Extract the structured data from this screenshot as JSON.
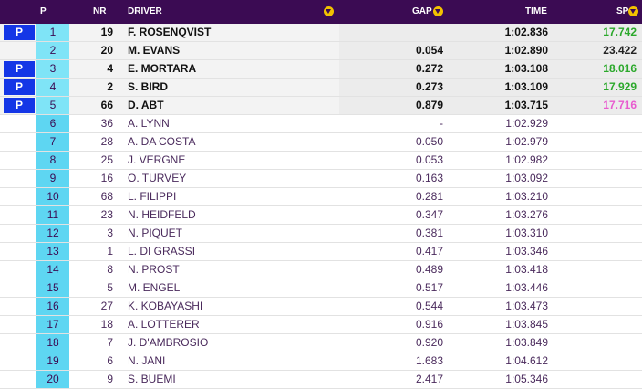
{
  "header": {
    "pos": "P",
    "nr": "NR",
    "driver": "DRIVER",
    "gap": "GAP",
    "time": "TIME",
    "sp": "SP"
  },
  "icons": {
    "sort": "chevron-down-circle-icon"
  },
  "colors": {
    "header_bg": "#3b0b53",
    "pole_badge": "#1436e6",
    "position_col": "#5ed6f2",
    "sector_green": "#2ba82b",
    "sector_pink": "#e85ccf",
    "sector_default": "#222222"
  },
  "rows": [
    {
      "badge": "P",
      "pos": "1",
      "nr": "19",
      "driver": "F. ROSENQVIST",
      "gap": "",
      "time": "1:02.836",
      "sp": "17.742",
      "sp_color": "green",
      "group": "top"
    },
    {
      "badge": "",
      "pos": "2",
      "nr": "20",
      "driver": "M. EVANS",
      "gap": "0.054",
      "time": "1:02.890",
      "sp": "23.422",
      "sp_color": "default",
      "group": "top"
    },
    {
      "badge": "P",
      "pos": "3",
      "nr": "4",
      "driver": "E. MORTARA",
      "gap": "0.272",
      "time": "1:03.108",
      "sp": "18.016",
      "sp_color": "green",
      "group": "top"
    },
    {
      "badge": "P",
      "pos": "4",
      "nr": "2",
      "driver": "S. BIRD",
      "gap": "0.273",
      "time": "1:03.109",
      "sp": "17.929",
      "sp_color": "green",
      "group": "top"
    },
    {
      "badge": "P",
      "pos": "5",
      "nr": "66",
      "driver": "D. ABT",
      "gap": "0.879",
      "time": "1:03.715",
      "sp": "17.716",
      "sp_color": "pink",
      "group": "top"
    },
    {
      "badge": "",
      "pos": "6",
      "nr": "36",
      "driver": "A. LYNN",
      "gap": "-",
      "time": "1:02.929",
      "sp": "",
      "sp_color": "default",
      "group": "rest"
    },
    {
      "badge": "",
      "pos": "7",
      "nr": "28",
      "driver": "A. DA COSTA",
      "gap": "0.050",
      "time": "1:02.979",
      "sp": "",
      "sp_color": "default",
      "group": "rest"
    },
    {
      "badge": "",
      "pos": "8",
      "nr": "25",
      "driver": "J. VERGNE",
      "gap": "0.053",
      "time": "1:02.982",
      "sp": "",
      "sp_color": "default",
      "group": "rest"
    },
    {
      "badge": "",
      "pos": "9",
      "nr": "16",
      "driver": "O. TURVEY",
      "gap": "0.163",
      "time": "1:03.092",
      "sp": "",
      "sp_color": "default",
      "group": "rest"
    },
    {
      "badge": "",
      "pos": "10",
      "nr": "68",
      "driver": "L. FILIPPI",
      "gap": "0.281",
      "time": "1:03.210",
      "sp": "",
      "sp_color": "default",
      "group": "rest"
    },
    {
      "badge": "",
      "pos": "11",
      "nr": "23",
      "driver": "N. HEIDFELD",
      "gap": "0.347",
      "time": "1:03.276",
      "sp": "",
      "sp_color": "default",
      "group": "rest"
    },
    {
      "badge": "",
      "pos": "12",
      "nr": "3",
      "driver": "N. PIQUET",
      "gap": "0.381",
      "time": "1:03.310",
      "sp": "",
      "sp_color": "default",
      "group": "rest"
    },
    {
      "badge": "",
      "pos": "13",
      "nr": "1",
      "driver": "L. DI GRASSI",
      "gap": "0.417",
      "time": "1:03.346",
      "sp": "",
      "sp_color": "default",
      "group": "rest"
    },
    {
      "badge": "",
      "pos": "14",
      "nr": "8",
      "driver": "N. PROST",
      "gap": "0.489",
      "time": "1:03.418",
      "sp": "",
      "sp_color": "default",
      "group": "rest"
    },
    {
      "badge": "",
      "pos": "15",
      "nr": "5",
      "driver": "M. ENGEL",
      "gap": "0.517",
      "time": "1:03.446",
      "sp": "",
      "sp_color": "default",
      "group": "rest"
    },
    {
      "badge": "",
      "pos": "16",
      "nr": "27",
      "driver": "K. KOBAYASHI",
      "gap": "0.544",
      "time": "1:03.473",
      "sp": "",
      "sp_color": "default",
      "group": "rest"
    },
    {
      "badge": "",
      "pos": "17",
      "nr": "18",
      "driver": "A. LOTTERER",
      "gap": "0.916",
      "time": "1:03.845",
      "sp": "",
      "sp_color": "default",
      "group": "rest"
    },
    {
      "badge": "",
      "pos": "18",
      "nr": "7",
      "driver": "J. D'AMBROSIO",
      "gap": "0.920",
      "time": "1:03.849",
      "sp": "",
      "sp_color": "default",
      "group": "rest"
    },
    {
      "badge": "",
      "pos": "19",
      "nr": "6",
      "driver": "N. JANI",
      "gap": "1.683",
      "time": "1:04.612",
      "sp": "",
      "sp_color": "default",
      "group": "rest"
    },
    {
      "badge": "",
      "pos": "20",
      "nr": "9",
      "driver": "S. BUEMI",
      "gap": "2.417",
      "time": "1:05.346",
      "sp": "",
      "sp_color": "default",
      "group": "rest"
    }
  ]
}
